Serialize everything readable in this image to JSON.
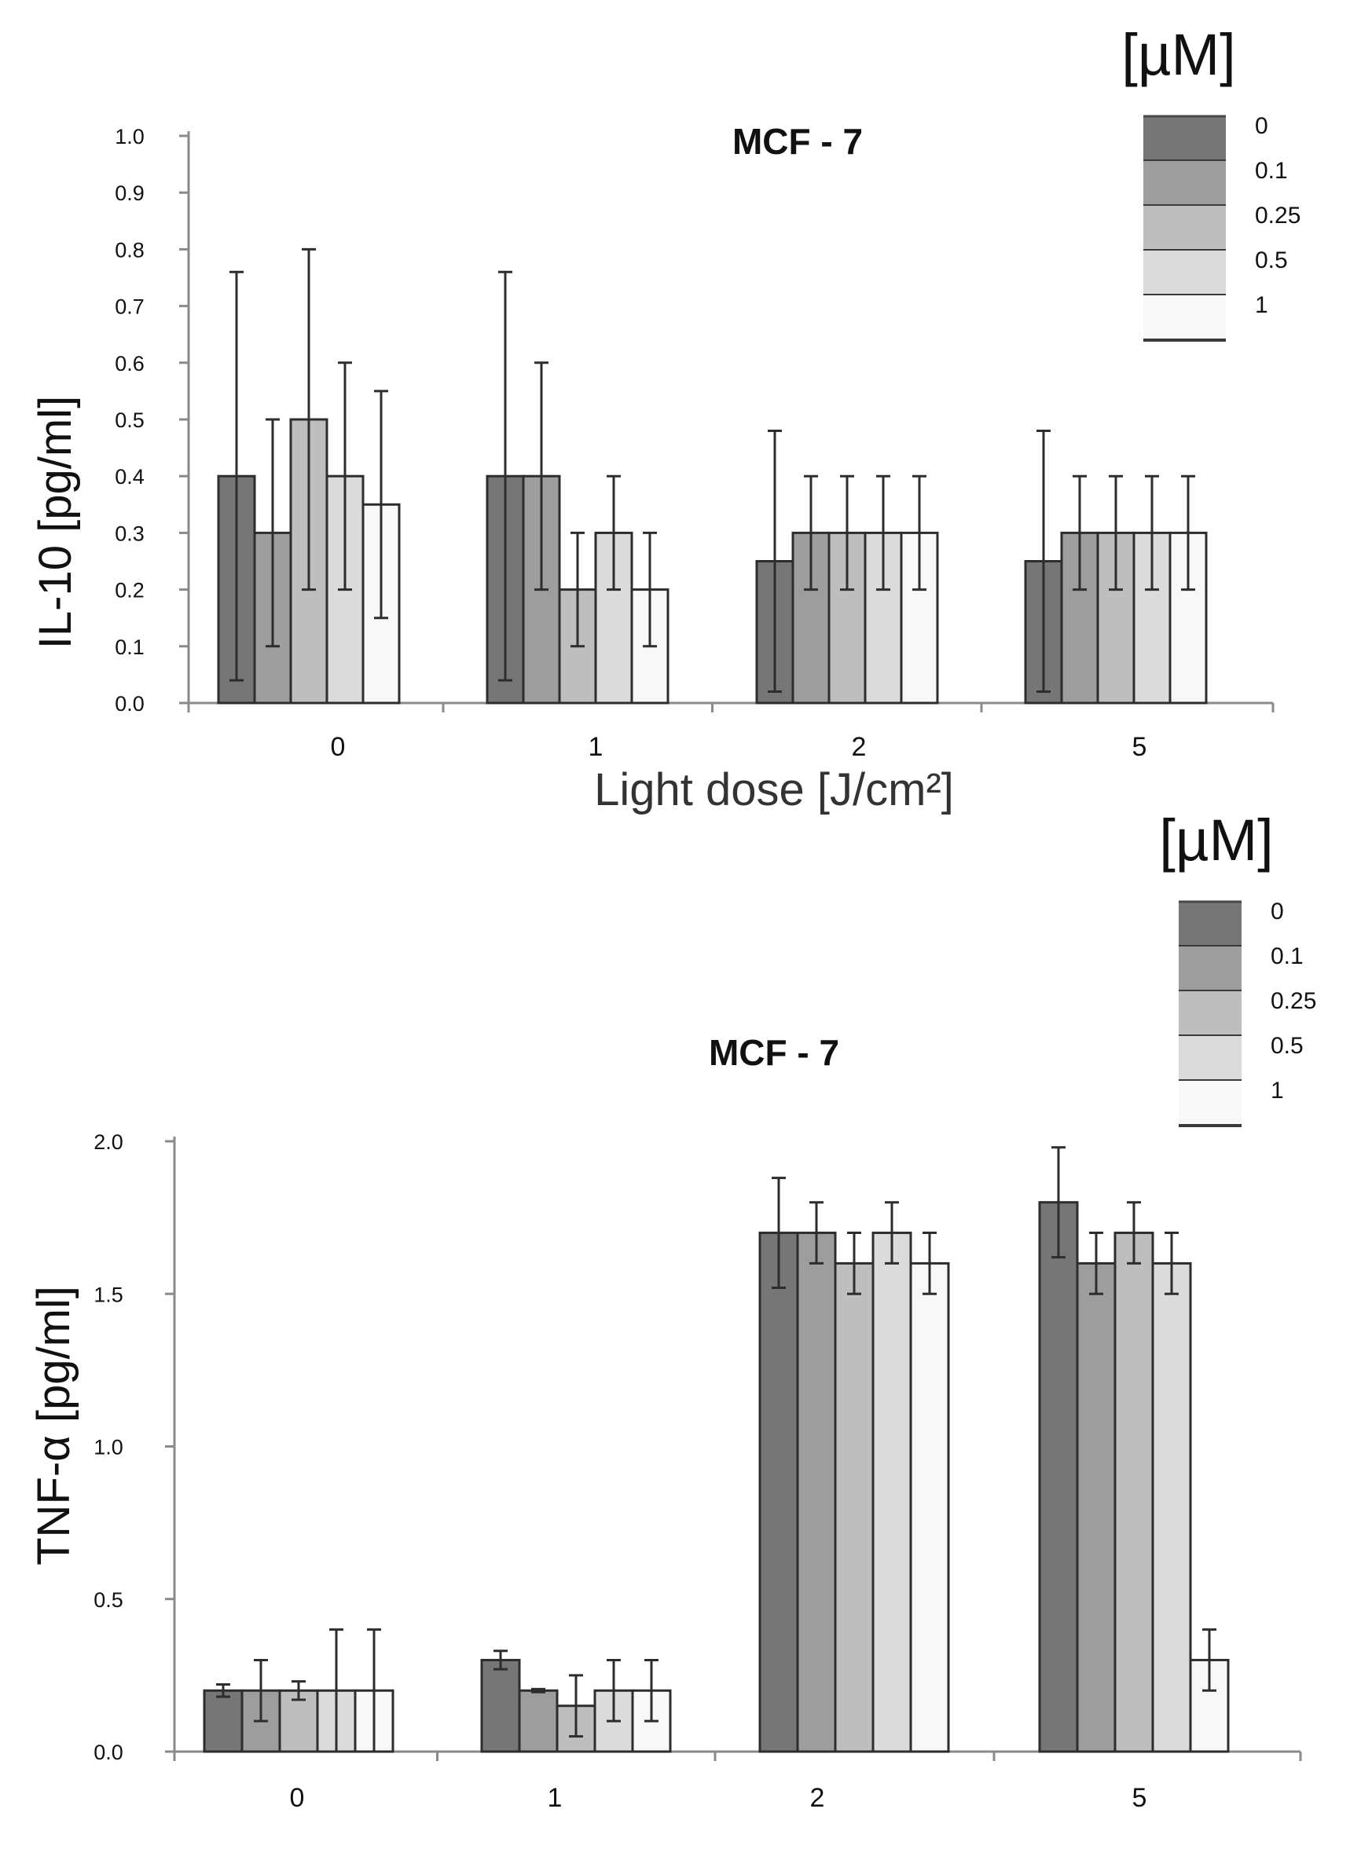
{
  "chart_data": [
    {
      "type": "bar",
      "title": "MCF - 7",
      "ylabel": "IL-10  [pg/ml]",
      "xlabel": "Light dose  [J/cm²]",
      "ylim": [
        0,
        1.0
      ],
      "yticks": [
        "0.0",
        "0.1",
        "0.2",
        "0.3",
        "0.4",
        "0.5",
        "0.6",
        "0.7",
        "0.8",
        "0.9",
        "1.0"
      ],
      "categories": [
        "0",
        "1",
        "2",
        "5"
      ],
      "legend_title": "[µM]",
      "legend_position": "top-right",
      "series": [
        {
          "name": "0",
          "color": "#767676",
          "values": [
            0.4,
            0.4,
            0.25,
            0.25
          ],
          "errors": [
            0.36,
            0.36,
            0.23,
            0.23
          ]
        },
        {
          "name": "0.1",
          "color": "#9d9d9d",
          "values": [
            0.3,
            0.4,
            0.3,
            0.3
          ],
          "errors": [
            0.2,
            0.2,
            0.1,
            0.1
          ]
        },
        {
          "name": "0.25",
          "color": "#bebebe",
          "values": [
            0.5,
            0.2,
            0.3,
            0.3
          ],
          "errors": [
            0.3,
            0.1,
            0.1,
            0.1
          ]
        },
        {
          "name": "0.5",
          "color": "#dbdbdb",
          "values": [
            0.4,
            0.3,
            0.3,
            0.3
          ],
          "errors": [
            0.2,
            0.1,
            0.1,
            0.1
          ]
        },
        {
          "name": "1",
          "color": "#f8f8f8",
          "values": [
            0.35,
            0.2,
            0.3,
            0.3
          ],
          "errors": [
            0.2,
            0.1,
            0.1,
            0.1
          ]
        }
      ]
    },
    {
      "type": "bar",
      "title": "MCF - 7",
      "ylabel": "TNF-α  [pg/ml]",
      "xlabel": "",
      "ylim": [
        0,
        2.0
      ],
      "yticks": [
        "0.0",
        "0.5",
        "1.0",
        "1.5",
        "2.0"
      ],
      "categories": [
        "0",
        "1",
        "2",
        "5"
      ],
      "legend_title": "[µM]",
      "legend_position": "top-right",
      "series": [
        {
          "name": "0",
          "color": "#767676",
          "values": [
            0.2,
            0.3,
            1.7,
            1.8
          ],
          "errors": [
            0.02,
            0.03,
            0.18,
            0.18
          ]
        },
        {
          "name": "0.1",
          "color": "#9d9d9d",
          "values": [
            0.2,
            0.2,
            1.7,
            1.6
          ],
          "errors": [
            0.1,
            0.005,
            0.1,
            0.1
          ]
        },
        {
          "name": "0.25",
          "color": "#bebebe",
          "values": [
            0.2,
            0.15,
            1.6,
            1.7
          ],
          "errors": [
            0.03,
            0.1,
            0.1,
            0.1
          ]
        },
        {
          "name": "0.5",
          "color": "#dbdbdb",
          "values": [
            0.2,
            0.2,
            1.7,
            1.6
          ],
          "errors": [
            0.2,
            0.1,
            0.1,
            0.1
          ]
        },
        {
          "name": "1",
          "color": "#f8f8f8",
          "values": [
            0.2,
            0.2,
            1.6,
            0.3
          ],
          "errors": [
            0.2,
            0.1,
            0.1,
            0.1
          ]
        }
      ]
    }
  ]
}
